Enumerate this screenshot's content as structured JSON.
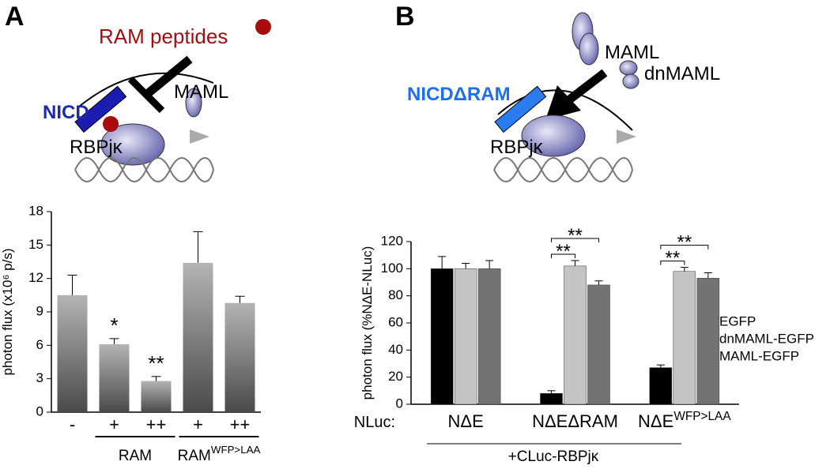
{
  "diagram_a": {
    "panel": "A",
    "peptides": "RAM peptides",
    "nicd": "NICD",
    "maml": "MAML",
    "rbp": "RBPjκ"
  },
  "diagram_b": {
    "panel": "B",
    "nicd": "NICDΔRAM",
    "maml": "MAML",
    "dnmaml": "dnMAML",
    "rbp": "RBPjκ"
  },
  "chart_data": [
    {
      "type": "bar",
      "ylabel": "photon flux (x10⁶ p/s)",
      "categories": [
        "-",
        "+",
        "++",
        "+",
        "++"
      ],
      "values": [
        10.5,
        6.1,
        2.8,
        13.4,
        9.8
      ],
      "errors": [
        1.8,
        0.5,
        0.4,
        2.8,
        0.6
      ],
      "color": "#b4b4b4",
      "annotations": [
        null,
        "*",
        "**",
        null,
        null
      ],
      "group_labels": [
        "RAM",
        "RAM"
      ],
      "group_label_sups": [
        null,
        "WFP>LAA"
      ],
      "ylim": [
        0,
        18
      ],
      "yticks": [
        0,
        3,
        6,
        9,
        12,
        15,
        18
      ]
    },
    {
      "type": "grouped_bar",
      "ylabel": "photon flux (%NΔE-NLuc)",
      "x_prefix": "NLuc:",
      "categories": [
        "NΔE",
        "NΔEΔRAM",
        "NΔE"
      ],
      "category_sups": [
        null,
        null,
        "WFP>LAA"
      ],
      "series": [
        {
          "name": "EGFP",
          "color": "#000000",
          "values": [
            100,
            8,
            27
          ],
          "errors": [
            9,
            2,
            2
          ]
        },
        {
          "name": "dnMAML-EGFP",
          "color": "#c4c4c4",
          "values": [
            100,
            102,
            98
          ],
          "errors": [
            4,
            4,
            3
          ]
        },
        {
          "name": "MAML-EGFP",
          "color": "#737373",
          "values": [
            100,
            88,
            93
          ],
          "errors": [
            6,
            3,
            4
          ]
        }
      ],
      "significance": [
        "**",
        "**",
        "**",
        "**"
      ],
      "footnote": "+CLuc-RBPjκ",
      "ylim": [
        0,
        120
      ],
      "yticks": [
        0,
        20,
        40,
        60,
        80,
        100,
        120
      ],
      "legend": "right"
    }
  ]
}
